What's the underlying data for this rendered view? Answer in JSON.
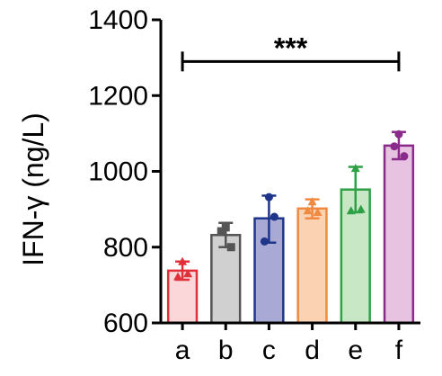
{
  "chart_data": {
    "type": "bar",
    "ylabel": "IFN-γ (ng/L)",
    "ylim": [
      600,
      1400
    ],
    "yticks": [
      "600",
      "800",
      "1000",
      "1200",
      "1400"
    ],
    "categories": [
      "a",
      "b",
      "c",
      "d",
      "e",
      "f"
    ],
    "values": [
      738,
      832,
      876,
      902,
      952,
      1068
    ],
    "errors": [
      [
        714,
        762
      ],
      [
        800,
        864
      ],
      [
        812,
        936
      ],
      [
        876,
        926
      ],
      [
        892,
        1012
      ],
      [
        1032,
        1104
      ]
    ],
    "points": [
      [
        762,
        722,
        730
      ],
      [
        852,
        842,
        800
      ],
      [
        932,
        815,
        880
      ],
      [
        920,
        896,
        892
      ],
      [
        1008,
        896,
        900
      ],
      [
        1098,
        1066,
        1040
      ]
    ],
    "fill_colors": [
      "#fbd7d9",
      "#d0d0d0",
      "#a9a9d6",
      "#fbd3b3",
      "#c7e7c5",
      "#e8c3e1"
    ],
    "stroke_colors": [
      "#e0303a",
      "#555555",
      "#1e3589",
      "#f08a40",
      "#2ea045",
      "#8a2a8a"
    ],
    "significance": {
      "label": "***",
      "from": "a",
      "to": "f",
      "y": 1290
    }
  }
}
